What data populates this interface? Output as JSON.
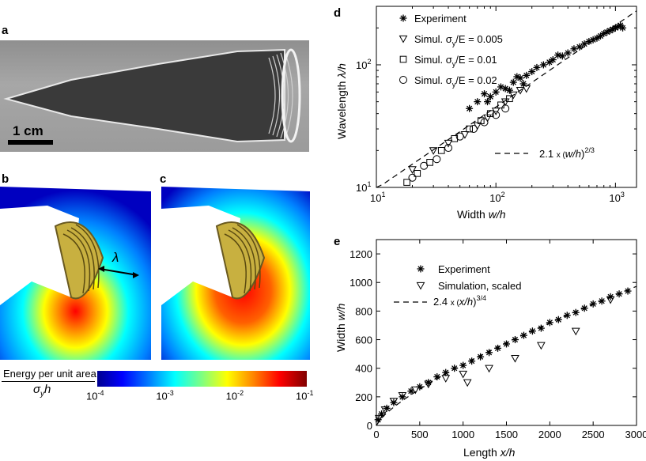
{
  "labels": {
    "a": "a",
    "b": "b",
    "c": "c",
    "d": "d",
    "e": "e"
  },
  "panel_a": {
    "scalebar": "1 cm"
  },
  "panel_b": {
    "lambda": "λ"
  },
  "colorbar": {
    "title_line1": "Energy per unit area",
    "title_sigma": "σ",
    "title_sub": "y",
    "title_h": "h",
    "ticks": [
      {
        "base": "10",
        "exp": "-4"
      },
      {
        "base": "10",
        "exp": "-3"
      },
      {
        "base": "10",
        "exp": "-2"
      },
      {
        "base": "10",
        "exp": "-1"
      }
    ]
  },
  "chart_data": [
    {
      "type": "scatter",
      "panel": "d",
      "scale": "log-log",
      "xlabel_prefix": "Width",
      "xlabel_var": "w/h",
      "ylabel_prefix": "Wavelength",
      "ylabel_var": "λ/h",
      "xlim": [
        10,
        1500
      ],
      "ylim": [
        10,
        300
      ],
      "xticks": [
        {
          "value": 10,
          "label": "10",
          "exp": "1"
        },
        {
          "value": 100,
          "label": "10",
          "exp": "2"
        },
        {
          "value": 1000,
          "label": "10",
          "exp": "3"
        }
      ],
      "yticks": [
        {
          "value": 10,
          "label": "10",
          "exp": "1"
        },
        {
          "value": 100,
          "label": "10",
          "exp": "2"
        }
      ],
      "legend": [
        "Experiment",
        "Simul. σy/E = 0.005",
        "Simul. σy/E = 0.01",
        "Simul. σy/E = 0.02"
      ],
      "legend_text": {
        "experiment": "Experiment",
        "s1_prefix": "Simul. σ",
        "s1_sub": "y",
        "s1_suffix": "/E = 0.005",
        "s2_prefix": "Simul. σ",
        "s2_sub": "y",
        "s2_suffix": "/E = 0.01",
        "s3_prefix": "Simul. σ",
        "s3_sub": "y",
        "s3_suffix": "/E = 0.02"
      },
      "fit": {
        "label_prefix": "2.1",
        "label_x": "x (",
        "label_var": "w/h",
        "label_close": ")",
        "label_exp": "2/3",
        "coef": 2.1,
        "power": 0.6667
      },
      "series": [
        {
          "name": "Experiment",
          "marker": "star",
          "points": [
            [
              60,
              44
            ],
            [
              70,
              50
            ],
            [
              80,
              58
            ],
            [
              90,
              55
            ],
            [
              100,
              60
            ],
            [
              110,
              66
            ],
            [
              120,
              64
            ],
            [
              140,
              72
            ],
            [
              150,
              80
            ],
            [
              160,
              78
            ],
            [
              180,
              82
            ],
            [
              200,
              88
            ],
            [
              220,
              95
            ],
            [
              250,
              100
            ],
            [
              280,
              105
            ],
            [
              300,
              110
            ],
            [
              330,
              120
            ],
            [
              360,
              118
            ],
            [
              400,
              125
            ],
            [
              450,
              135
            ],
            [
              500,
              140
            ],
            [
              550,
              148
            ],
            [
              600,
              155
            ],
            [
              650,
              160
            ],
            [
              700,
              165
            ],
            [
              750,
              172
            ],
            [
              800,
              180
            ],
            [
              850,
              185
            ],
            [
              900,
              190
            ],
            [
              950,
              195
            ],
            [
              1000,
              200
            ],
            [
              1050,
              205
            ],
            [
              1100,
              210
            ],
            [
              1150,
              200
            ],
            [
              85,
              50
            ],
            [
              130,
              62
            ],
            [
              170,
              70
            ]
          ]
        },
        {
          "name": "Simul. σy/E = 0.005",
          "marker": "triangle",
          "points": [
            [
              20,
              14
            ],
            [
              30,
              20
            ],
            [
              40,
              23
            ],
            [
              55,
              27
            ],
            [
              70,
              32
            ],
            [
              85,
              37
            ],
            [
              100,
              42
            ],
            [
              120,
              50
            ],
            [
              140,
              57
            ],
            [
              160,
              62
            ],
            [
              180,
              64
            ]
          ]
        },
        {
          "name": "Simul. σy/E = 0.01",
          "marker": "square",
          "points": [
            [
              18,
              11
            ],
            [
              22,
              13
            ],
            [
              28,
              16
            ],
            [
              35,
              20
            ],
            [
              45,
              25
            ],
            [
              60,
              30
            ],
            [
              75,
              35
            ],
            [
              90,
              40
            ],
            [
              110,
              47
            ],
            [
              130,
              53
            ]
          ]
        },
        {
          "name": "Simul. σy/E = 0.02",
          "marker": "circle",
          "points": [
            [
              20,
              12
            ],
            [
              25,
              15
            ],
            [
              32,
              17
            ],
            [
              40,
              21
            ],
            [
              50,
              26
            ],
            [
              65,
              30
            ],
            [
              80,
              34
            ],
            [
              100,
              39
            ],
            [
              120,
              44
            ]
          ]
        }
      ]
    },
    {
      "type": "scatter",
      "panel": "e",
      "scale": "linear",
      "xlabel_prefix": "Length",
      "xlabel_var": "x/h",
      "ylabel_prefix": "Width",
      "ylabel_var": "w/h",
      "xlim": [
        0,
        3000
      ],
      "ylim": [
        0,
        1300
      ],
      "xticks": [
        0,
        500,
        1000,
        1500,
        2000,
        2500,
        3000
      ],
      "yticks": [
        0,
        200,
        400,
        600,
        800,
        1000,
        1200
      ],
      "legend": [
        "Experiment",
        "Simulation, scaled"
      ],
      "fit": {
        "label_prefix": "2.4",
        "label_x": "x (",
        "label_var": "x/h",
        "label_close": ")",
        "label_exp": "3/4",
        "coef": 2.4,
        "power": 0.75
      },
      "series": [
        {
          "name": "Experiment",
          "marker": "star",
          "points": [
            [
              20,
              40
            ],
            [
              60,
              80
            ],
            [
              120,
              120
            ],
            [
              200,
              160
            ],
            [
              300,
              200
            ],
            [
              400,
              240
            ],
            [
              500,
              270
            ],
            [
              600,
              300
            ],
            [
              700,
              340
            ],
            [
              800,
              370
            ],
            [
              900,
              400
            ],
            [
              1000,
              420
            ],
            [
              1100,
              450
            ],
            [
              1200,
              480
            ],
            [
              1300,
              510
            ],
            [
              1400,
              540
            ],
            [
              1500,
              570
            ],
            [
              1600,
              600
            ],
            [
              1700,
              630
            ],
            [
              1800,
              660
            ],
            [
              1900,
              680
            ],
            [
              2000,
              720
            ],
            [
              2100,
              740
            ],
            [
              2200,
              770
            ],
            [
              2300,
              790
            ],
            [
              2400,
              820
            ],
            [
              2500,
              850
            ],
            [
              2600,
              870
            ],
            [
              2700,
              900
            ],
            [
              2800,
              920
            ],
            [
              2900,
              940
            ]
          ]
        },
        {
          "name": "Simulation, scaled",
          "marker": "triangle",
          "points": [
            [
              30,
              50
            ],
            [
              100,
              110
            ],
            [
              200,
              170
            ],
            [
              300,
              210
            ],
            [
              450,
              250
            ],
            [
              600,
              290
            ],
            [
              800,
              330
            ],
            [
              1000,
              360
            ],
            [
              1050,
              300
            ],
            [
              1300,
              400
            ],
            [
              1600,
              470
            ],
            [
              1900,
              560
            ],
            [
              2300,
              660
            ],
            [
              2700,
              880
            ]
          ]
        }
      ]
    }
  ]
}
